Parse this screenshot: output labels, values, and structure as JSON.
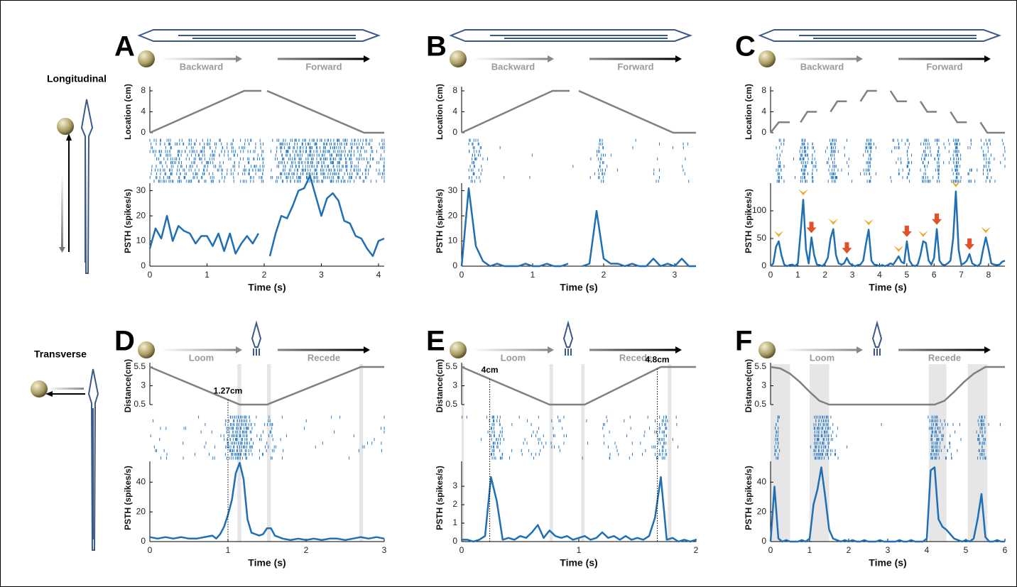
{
  "row_labels": [
    "Longitudinal",
    "Transverse"
  ],
  "chart_data": [
    {
      "type": "stimulus-psth",
      "label": "A",
      "arrow_labels": [
        "Backward",
        "Forward"
      ],
      "location_label": "Location (cm)",
      "location_color": "#808080",
      "location_x": [
        0,
        1.65,
        1.95,
        2.0,
        2.05,
        3.75,
        4.1
      ],
      "location_values": [
        0,
        8,
        8,
        null,
        8,
        0,
        0
      ],
      "location_ylim": [
        0,
        8
      ],
      "location_yticks": [
        0,
        4,
        8
      ],
      "ylabel": "PSTH (spikes/s)",
      "xlabel": "Time (s)",
      "color": "#1f6fb4",
      "x": [
        0,
        0.1,
        0.2,
        0.3,
        0.4,
        0.5,
        0.6,
        0.7,
        0.8,
        0.9,
        1,
        1.1,
        1.2,
        1.3,
        1.4,
        1.5,
        1.6,
        1.7,
        1.8,
        1.9,
        2,
        2.1,
        2.2,
        2.3,
        2.4,
        2.5,
        2.6,
        2.7,
        2.8,
        2.9,
        3,
        3.1,
        3.2,
        3.3,
        3.4,
        3.5,
        3.6,
        3.7,
        3.8,
        3.9,
        4,
        4.1
      ],
      "values": [
        7,
        15,
        11,
        20,
        10,
        16,
        14,
        13,
        9,
        12,
        12,
        8,
        13,
        6,
        13,
        5,
        9,
        12,
        9,
        13,
        null,
        4,
        13,
        20,
        19,
        24,
        30,
        31,
        36,
        28,
        20,
        27,
        29,
        26,
        18,
        17,
        12,
        11,
        7,
        4,
        10,
        11
      ],
      "xlim": [
        0,
        4.1
      ],
      "xticks": [
        0,
        1,
        2,
        3,
        4
      ],
      "ylim": [
        0,
        33
      ],
      "yticks": [
        0,
        10,
        20,
        30
      ],
      "shaded": [],
      "annotations": [],
      "markers": []
    },
    {
      "type": "stimulus-psth",
      "label": "B",
      "arrow_labels": [
        "Backward",
        "Forward"
      ],
      "location_label": "Location (cm)",
      "location_color": "#808080",
      "location_x": [
        0,
        1.28,
        1.52,
        1.58,
        1.65,
        2.98,
        3.3
      ],
      "location_values": [
        0,
        8,
        8,
        null,
        8,
        0,
        0
      ],
      "location_ylim": [
        0,
        8
      ],
      "location_yticks": [
        0,
        4,
        8
      ],
      "ylabel": "PSTH (spikes/s)",
      "xlabel": "Time (s)",
      "color": "#1f6fb4",
      "x": [
        0,
        0.1,
        0.2,
        0.3,
        0.4,
        0.5,
        0.6,
        0.7,
        0.8,
        0.9,
        1,
        1.1,
        1.2,
        1.3,
        1.4,
        1.5,
        1.6,
        1.7,
        1.8,
        1.9,
        2,
        2.1,
        2.2,
        2.3,
        2.4,
        2.5,
        2.6,
        2.7,
        2.8,
        2.9,
        3,
        3.1,
        3.2,
        3.3
      ],
      "values": [
        0,
        31,
        8,
        2,
        0,
        1,
        0,
        0,
        0,
        1,
        0,
        0,
        1,
        0,
        0,
        1,
        null,
        0,
        1,
        22,
        3,
        1,
        1,
        0,
        1,
        0,
        0,
        3,
        0,
        1,
        0,
        3,
        0,
        0
      ],
      "xlim": [
        0,
        3.3
      ],
      "xticks": [
        0,
        1,
        2,
        3
      ],
      "ylim": [
        0,
        33
      ],
      "yticks": [
        0,
        10,
        20,
        30
      ],
      "shaded": [],
      "annotations": [],
      "markers": []
    },
    {
      "type": "stimulus-psth",
      "label": "C",
      "arrow_labels": [
        "Backward",
        "Forward"
      ],
      "location_label": "Location (cm)",
      "location_color": "#808080",
      "location_x": [
        0,
        0.3,
        0.7,
        0.9,
        1.1,
        1.35,
        1.7,
        1.95,
        2.2,
        2.45,
        2.8,
        3.05,
        3.3,
        3.55,
        3.9,
        4.15,
        4.4,
        4.65,
        5.0,
        5.25,
        5.5,
        5.75,
        6.1,
        6.35,
        6.6,
        6.85,
        7.2,
        7.45,
        7.7,
        7.95,
        8.6
      ],
      "location_values": [
        0,
        2,
        2,
        null,
        2,
        4,
        4,
        null,
        4,
        6,
        6,
        null,
        6,
        8,
        8,
        null,
        8,
        6,
        6,
        null,
        6,
        4,
        4,
        null,
        4,
        2,
        2,
        null,
        2,
        0,
        0
      ],
      "location_ylim": [
        0,
        8
      ],
      "location_yticks": [
        0,
        4,
        8
      ],
      "ylabel": "PSTH (spikes/s)",
      "xlabel": "Time (s)",
      "color": "#1f6fb4",
      "x": [
        0,
        0.1,
        0.2,
        0.3,
        0.4,
        0.5,
        0.6,
        0.7,
        0.8,
        0.9,
        1,
        1.1,
        1.2,
        1.3,
        1.4,
        1.5,
        1.6,
        1.7,
        1.8,
        1.9,
        2,
        2.1,
        2.2,
        2.3,
        2.4,
        2.5,
        2.6,
        2.7,
        2.8,
        2.9,
        3,
        3.1,
        3.2,
        3.3,
        3.4,
        3.5,
        3.6,
        3.7,
        3.8,
        3.9,
        4,
        4.1,
        4.2,
        4.3,
        4.4,
        4.5,
        4.6,
        4.7,
        4.8,
        4.9,
        5,
        5.1,
        5.2,
        5.3,
        5.4,
        5.5,
        5.6,
        5.7,
        5.8,
        5.9,
        6,
        6.1,
        6.2,
        6.3,
        6.4,
        6.5,
        6.6,
        6.7,
        6.8,
        6.9,
        7,
        7.1,
        7.2,
        7.3,
        7.4,
        7.5,
        7.6,
        7.7,
        7.8,
        7.9,
        8,
        8.1,
        8.2,
        8.3,
        8.4,
        8.5,
        8.6
      ],
      "values": [
        0,
        5,
        35,
        45,
        20,
        3,
        0,
        2,
        3,
        0,
        5,
        60,
        120,
        30,
        5,
        52,
        20,
        3,
        2,
        0,
        5,
        15,
        50,
        67,
        20,
        5,
        3,
        5,
        15,
        5,
        2,
        0,
        2,
        3,
        10,
        40,
        66,
        10,
        3,
        2,
        0,
        2,
        0,
        2,
        5,
        3,
        10,
        18,
        8,
        5,
        45,
        10,
        2,
        0,
        3,
        20,
        45,
        42,
        10,
        3,
        15,
        67,
        10,
        3,
        2,
        5,
        10,
        50,
        135,
        30,
        3,
        5,
        10,
        22,
        5,
        2,
        0,
        5,
        30,
        52,
        30,
        5,
        3,
        2,
        3,
        8,
        10
      ],
      "xlim": [
        0,
        8.6
      ],
      "xticks": [
        0,
        1,
        2,
        3,
        4,
        5,
        6,
        7,
        8
      ],
      "ylim": [
        0,
        150
      ],
      "yticks": [
        0,
        50,
        100
      ],
      "shaded": [],
      "annotations": [],
      "markers": [
        {
          "x": 0.3,
          "y": 45,
          "shape": "chevron",
          "color": "#f0a830"
        },
        {
          "x": 1.2,
          "y": 120,
          "shape": "chevron",
          "color": "#f0a830"
        },
        {
          "x": 1.5,
          "y": 52,
          "shape": "arrow",
          "color": "#e0522a"
        },
        {
          "x": 2.3,
          "y": 67,
          "shape": "chevron",
          "color": "#f0a830"
        },
        {
          "x": 2.8,
          "y": 15,
          "shape": "arrow",
          "color": "#e0522a"
        },
        {
          "x": 3.6,
          "y": 66,
          "shape": "chevron",
          "color": "#f0a830"
        },
        {
          "x": 4.7,
          "y": 18,
          "shape": "chevron",
          "color": "#f0a830"
        },
        {
          "x": 5.0,
          "y": 45,
          "shape": "arrow",
          "color": "#e0522a"
        },
        {
          "x": 5.6,
          "y": 45,
          "shape": "chevron",
          "color": "#f0a830"
        },
        {
          "x": 6.1,
          "y": 67,
          "shape": "arrow",
          "color": "#e0522a"
        },
        {
          "x": 6.8,
          "y": 135,
          "shape": "chevron",
          "color": "#f0a830"
        },
        {
          "x": 7.3,
          "y": 22,
          "shape": "arrow",
          "color": "#e0522a"
        },
        {
          "x": 7.9,
          "y": 52,
          "shape": "chevron",
          "color": "#f0a830"
        }
      ]
    },
    {
      "type": "stimulus-psth",
      "label": "D",
      "arrow_labels": [
        "Loom",
        "Recede"
      ],
      "location_label": "Distance(cm)",
      "location_color": "#808080",
      "location_x": [
        0,
        1.15,
        1.5,
        2.7,
        3
      ],
      "location_values": [
        5.5,
        0.5,
        0.5,
        5.5,
        5.5
      ],
      "location_ylim": [
        0.5,
        5.5
      ],
      "location_yticks": [
        0.5,
        3,
        5.5
      ],
      "ylabel": "PSTH (spikes/s)",
      "xlabel": "Time (s)",
      "color": "#1f6fb4",
      "x": [
        0,
        0.1,
        0.2,
        0.3,
        0.4,
        0.5,
        0.6,
        0.7,
        0.8,
        0.85,
        0.9,
        0.95,
        1,
        1.05,
        1.1,
        1.15,
        1.2,
        1.25,
        1.3,
        1.35,
        1.4,
        1.45,
        1.5,
        1.55,
        1.6,
        1.7,
        1.8,
        1.9,
        2,
        2.1,
        2.2,
        2.3,
        2.4,
        2.5,
        2.6,
        2.7,
        2.8,
        2.9,
        3
      ],
      "values": [
        3,
        2,
        3,
        2,
        3,
        2,
        2,
        3,
        4,
        2,
        5,
        10,
        18,
        28,
        46,
        53,
        42,
        15,
        6,
        5,
        4,
        5,
        9,
        9,
        4,
        2,
        1,
        2,
        1,
        2,
        1,
        2,
        2,
        1,
        2,
        3,
        2,
        3,
        2
      ],
      "xlim": [
        0,
        3
      ],
      "xticks": [
        0,
        1,
        2,
        3
      ],
      "ylim": [
        0,
        54
      ],
      "yticks": [
        0,
        20,
        40
      ],
      "shaded": [
        [
          1.12,
          1.17
        ],
        [
          1.5,
          1.55
        ],
        [
          2.68,
          2.73
        ]
      ],
      "annotations": [
        {
          "text": "1.27cm",
          "x": 1.0
        }
      ],
      "markers": []
    },
    {
      "type": "stimulus-psth",
      "label": "E",
      "arrow_labels": [
        "Loom",
        "Recede"
      ],
      "location_label": "Distance(cm)",
      "location_color": "#808080",
      "location_x": [
        0,
        0.75,
        1.05,
        1.7,
        2
      ],
      "location_values": [
        5.5,
        0.5,
        0.5,
        5.5,
        5.5
      ],
      "location_ylim": [
        0.5,
        5.5
      ],
      "location_yticks": [
        0.5,
        3,
        5.5
      ],
      "ylabel": "PSTH (spikes/s)",
      "xlabel": "Time (s)",
      "color": "#1f6fb4",
      "x": [
        0,
        0.05,
        0.1,
        0.15,
        0.2,
        0.25,
        0.3,
        0.35,
        0.4,
        0.45,
        0.5,
        0.55,
        0.6,
        0.65,
        0.7,
        0.75,
        0.8,
        0.85,
        0.9,
        0.95,
        1,
        1.05,
        1.1,
        1.15,
        1.2,
        1.25,
        1.3,
        1.35,
        1.4,
        1.45,
        1.5,
        1.55,
        1.6,
        1.65,
        1.7,
        1.75,
        1.8,
        1.85,
        1.9,
        1.95,
        2
      ],
      "values": [
        0.1,
        0.1,
        0,
        0.1,
        0.3,
        3.5,
        2.2,
        0.1,
        0.2,
        0.1,
        0.3,
        0.2,
        0.5,
        0.9,
        0.2,
        0.6,
        0.3,
        0.2,
        0.3,
        0.1,
        0.2,
        0.3,
        0.1,
        0.2,
        0.5,
        0.2,
        0.3,
        0.1,
        0.3,
        0.1,
        0.2,
        0.1,
        0.3,
        1.3,
        3.5,
        0.1,
        0.2,
        0,
        0.1,
        0,
        0.1
      ],
      "xlim": [
        0,
        2
      ],
      "xticks": [
        0,
        1,
        2
      ],
      "ylim": [
        0,
        4.35
      ],
      "yticks": [
        0,
        1,
        2,
        3
      ],
      "shaded": [
        [
          0,
          0.02
        ],
        [
          0.75,
          0.78
        ],
        [
          1.02,
          1.05
        ],
        [
          1.76,
          1.79
        ]
      ],
      "annotations": [
        {
          "text": "4cm",
          "x": 0.24
        },
        {
          "text": "4.8cm",
          "x": 1.67
        }
      ],
      "markers": []
    },
    {
      "type": "stimulus-psth",
      "label": "F",
      "arrow_labels": [
        "Loom",
        "Recede"
      ],
      "location_label": "Distance(cm)",
      "location_color": "#808080",
      "location_x": [
        0,
        0.25,
        0.5,
        0.75,
        1,
        1.25,
        1.5,
        4.2,
        4.45,
        4.7,
        4.95,
        5.2,
        5.5,
        6
      ],
      "location_values": [
        5.5,
        5.3,
        4.6,
        3.5,
        2.2,
        1,
        0.5,
        0.5,
        1,
        2.2,
        3.5,
        4.6,
        5.5,
        5.5
      ],
      "location_ylim": [
        0.5,
        5.5
      ],
      "location_yticks": [
        0.5,
        3,
        5.5
      ],
      "ylabel": "PSTH (spikes/s)",
      "xlabel": "Time (s)",
      "color": "#1f6fb4",
      "x": [
        0,
        0.1,
        0.2,
        0.3,
        0.4,
        0.5,
        0.6,
        0.7,
        0.8,
        0.9,
        1,
        1.1,
        1.2,
        1.3,
        1.4,
        1.5,
        1.6,
        1.7,
        1.8,
        1.9,
        2,
        2.1,
        2.2,
        2.3,
        2.4,
        2.5,
        2.6,
        2.7,
        2.8,
        2.9,
        3,
        3.1,
        3.2,
        3.3,
        3.4,
        3.5,
        3.6,
        3.7,
        3.8,
        3.9,
        4,
        4.1,
        4.2,
        4.3,
        4.4,
        4.5,
        4.6,
        4.7,
        4.8,
        4.9,
        5,
        5.1,
        5.2,
        5.3,
        5.4,
        5.5,
        5.6,
        5.7,
        5.8,
        5.9,
        6
      ],
      "values": [
        0,
        37,
        2,
        0,
        1,
        0,
        0,
        0,
        1,
        0,
        2,
        25,
        35,
        50,
        30,
        8,
        2,
        1,
        0,
        1,
        0,
        1,
        0,
        0,
        1,
        0,
        0,
        0,
        1,
        0,
        0,
        0,
        0,
        1,
        0,
        0,
        1,
        0,
        0,
        0,
        2,
        48,
        50,
        15,
        10,
        8,
        5,
        2,
        1,
        0,
        1,
        0,
        2,
        15,
        32,
        3,
        0,
        0,
        1,
        0,
        0
      ],
      "xlim": [
        0,
        6
      ],
      "xticks": [
        0,
        1,
        2,
        3,
        4,
        5,
        6
      ],
      "ylim": [
        0,
        54
      ],
      "yticks": [
        0,
        20,
        40
      ],
      "shaded": [
        [
          0,
          0.5
        ],
        [
          1.0,
          1.5
        ],
        [
          4.05,
          4.5
        ],
        [
          5.05,
          5.55
        ]
      ],
      "annotations": [],
      "markers": []
    }
  ]
}
